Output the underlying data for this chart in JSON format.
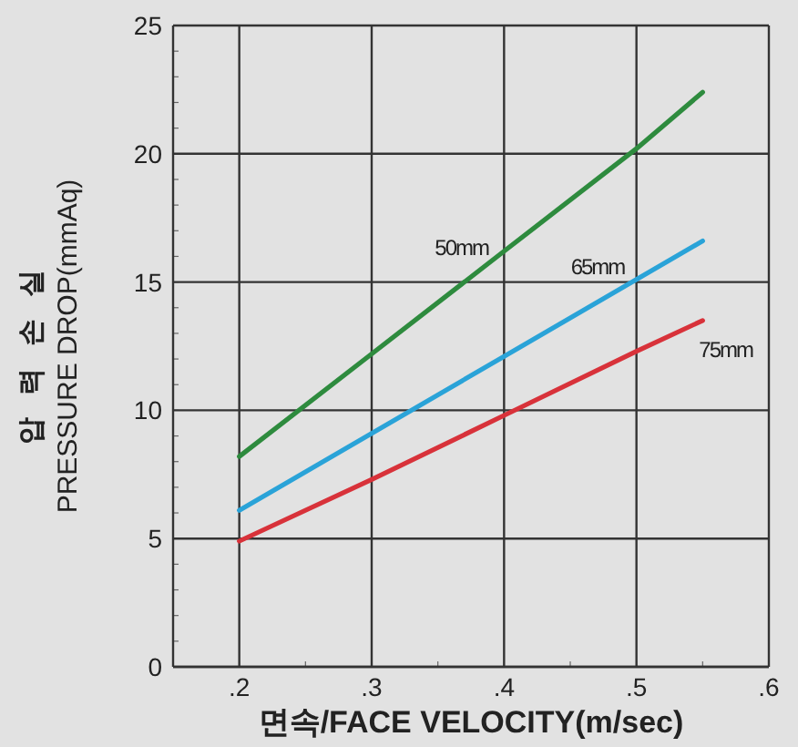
{
  "chart_data": {
    "type": "line",
    "xlabel": "면속/FACE VELOCITY(m/sec)",
    "ylabel": "압력손실\nPRESSURE DROP(mmAq)",
    "x": [
      0.2,
      0.3,
      0.4,
      0.5,
      0.55
    ],
    "series": [
      {
        "name": "50mm",
        "color": "#2e8b3e",
        "values": [
          8.2,
          12.2,
          16.2,
          20.2,
          22.4
        ]
      },
      {
        "name": "65mm",
        "color": "#2aa3d8",
        "values": [
          6.1,
          9.1,
          12.1,
          15.1,
          16.6
        ]
      },
      {
        "name": "75mm",
        "color": "#d8323a",
        "values": [
          4.9,
          7.3,
          9.8,
          12.3,
          13.5
        ]
      }
    ],
    "xlim": [
      0.15,
      0.6
    ],
    "ylim": [
      0,
      25
    ],
    "xticks": [
      {
        "value": 0.2,
        "label": ".2"
      },
      {
        "value": 0.3,
        "label": ".3"
      },
      {
        "value": 0.4,
        "label": ".4"
      },
      {
        "value": 0.5,
        "label": ".5"
      },
      {
        "value": 0.6,
        "label": ".6"
      }
    ],
    "yticks": [
      0,
      5,
      10,
      15,
      20,
      25
    ],
    "grid": true,
    "marker": "none",
    "line_style": "solid"
  }
}
